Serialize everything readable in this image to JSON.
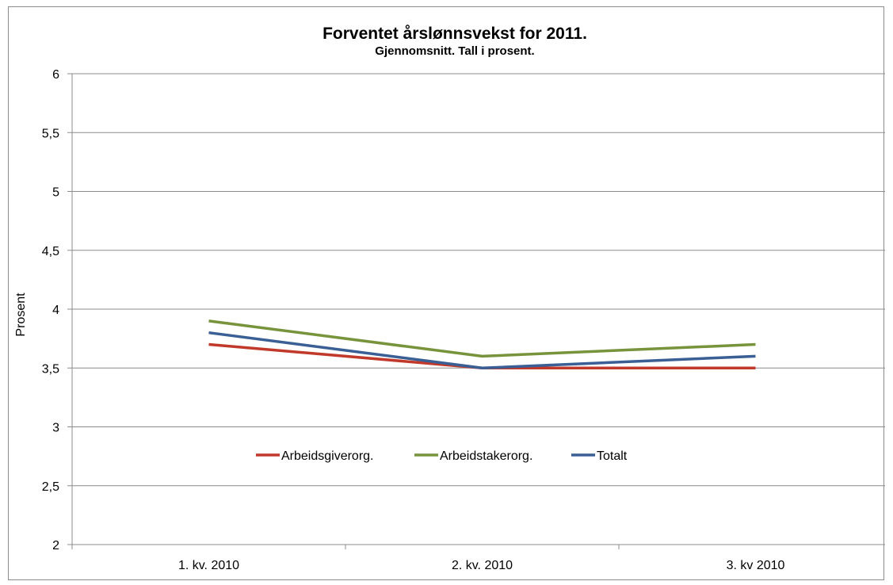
{
  "chart_data": {
    "type": "line",
    "title": "Forventet årslønnsvekst for 2011.",
    "subtitle": "Gjennomsnitt. Tall i prosent.",
    "xlabel": "",
    "ylabel": "Prosent",
    "ylim": [
      2,
      6
    ],
    "y_ticks": [
      2,
      2.5,
      3,
      3.5,
      4,
      4.5,
      5,
      5.5,
      6
    ],
    "y_tick_labels": [
      "2",
      "2,5",
      "3",
      "3,5",
      "4",
      "4,5",
      "5",
      "5,5",
      "6"
    ],
    "categories": [
      "1. kv. 2010",
      "2. kv. 2010",
      "3. kv 2010"
    ],
    "grid": true,
    "legend_position": "inside-bottom-center",
    "series": [
      {
        "name": "Arbeidsgiverorg.",
        "color": "#c0392b",
        "values": [
          3.7,
          3.5,
          3.5
        ]
      },
      {
        "name": "Arbeidstakerorg.",
        "color": "#77933c",
        "values": [
          3.9,
          3.6,
          3.7
        ]
      },
      {
        "name": "Totalt",
        "color": "#3a5f95",
        "values": [
          3.8,
          3.5,
          3.6
        ]
      }
    ]
  }
}
